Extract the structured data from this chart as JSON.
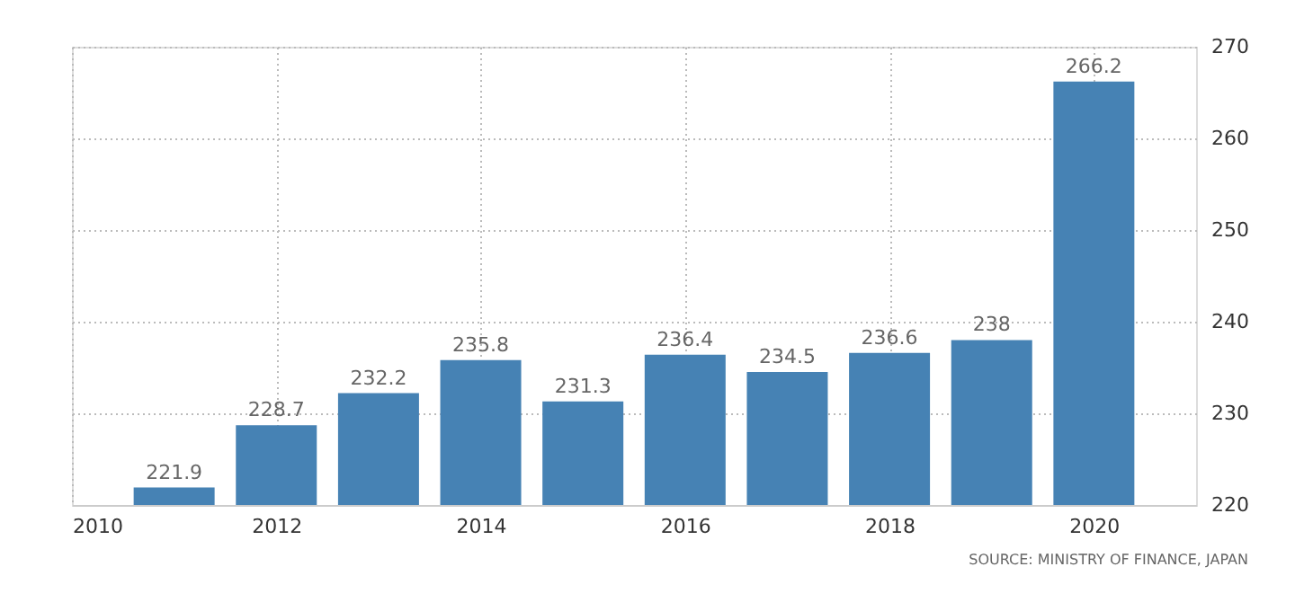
{
  "chart_data": {
    "type": "bar",
    "x": [
      2011,
      2012,
      2013,
      2014,
      2015,
      2016,
      2017,
      2018,
      2019,
      2020
    ],
    "values": [
      221.9,
      228.7,
      232.2,
      235.8,
      231.3,
      236.4,
      234.5,
      236.6,
      238,
      266.2
    ],
    "color": "#4682b4",
    "xlim": [
      2010,
      2021
    ],
    "xticks": [
      2010,
      2012,
      2014,
      2016,
      2018,
      2020
    ],
    "ylim": [
      220,
      270
    ],
    "yticks": [
      220,
      230,
      240,
      250,
      260,
      270
    ],
    "grid": true,
    "data_labels": true,
    "annotations": [
      "SOURCE: MINISTRY OF FINANCE, JAPAN"
    ]
  }
}
